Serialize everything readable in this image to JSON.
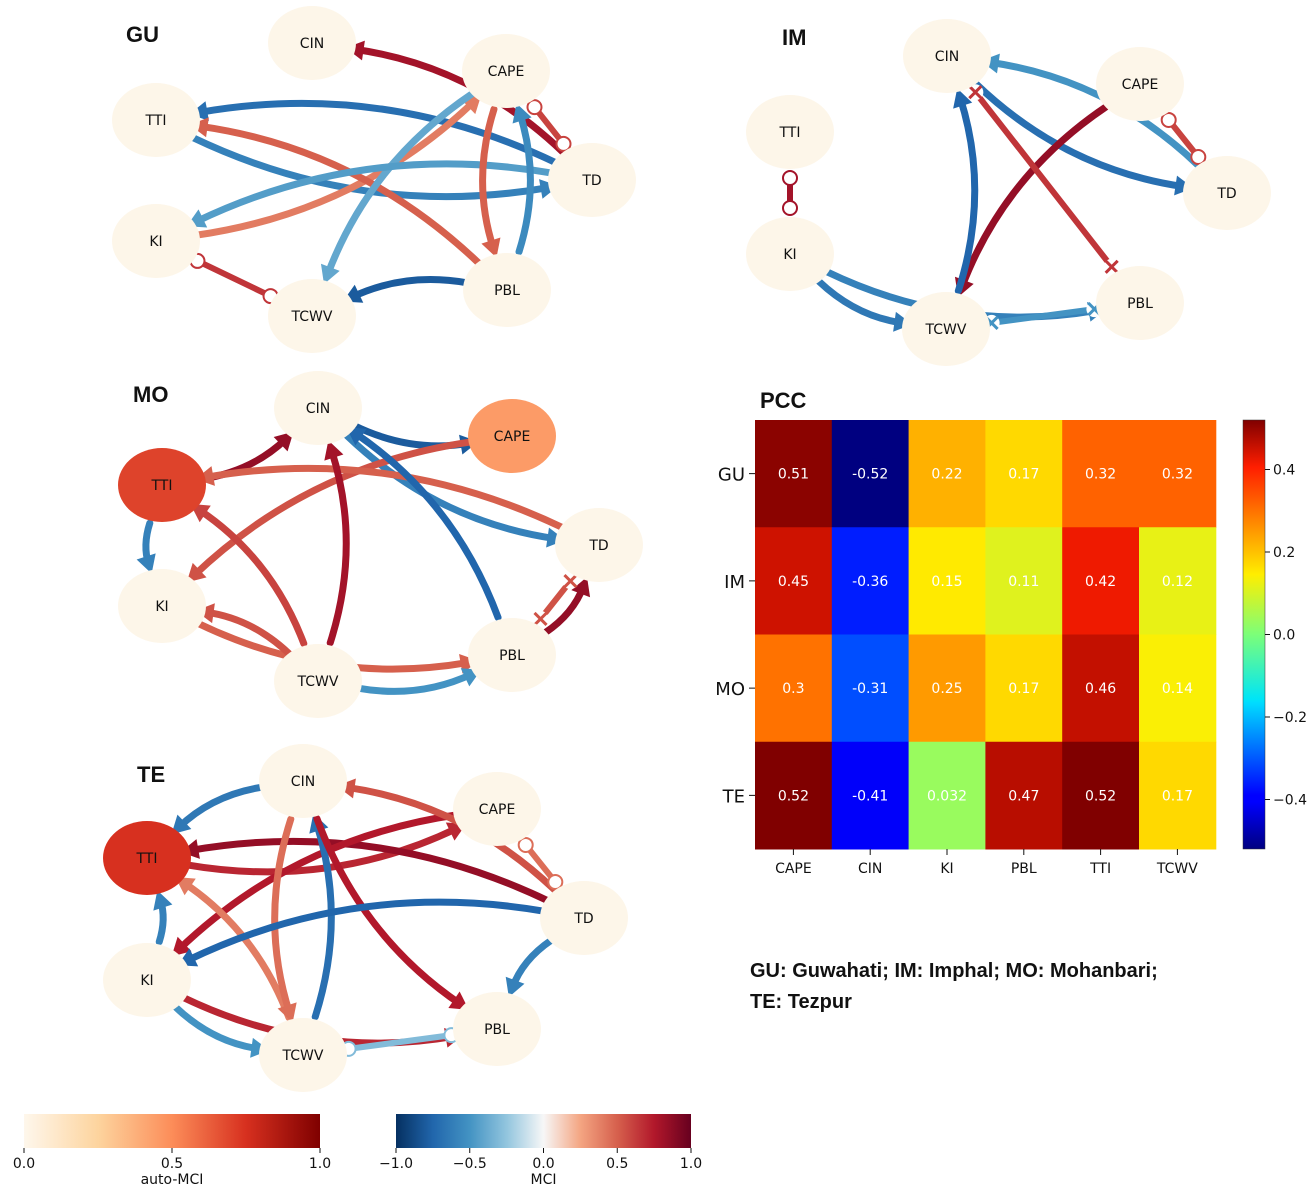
{
  "panels": [
    {
      "id": "GU",
      "title": "GU",
      "nodes": [
        {
          "name": "CIN",
          "label": "CIN",
          "auto_mci": 0.05
        },
        {
          "name": "CAPE",
          "label": "CAPE",
          "auto_mci": 0.05
        },
        {
          "name": "TTI",
          "label": "TTI",
          "auto_mci": 0.05
        },
        {
          "name": "TD",
          "label": "TD",
          "auto_mci": 0.05
        },
        {
          "name": "KI",
          "label": "KI",
          "auto_mci": 0.05
        },
        {
          "name": "PBL",
          "label": "PBL",
          "auto_mci": 0.05
        },
        {
          "name": "TCWV",
          "label": "TCWV",
          "auto_mci": 0.05
        }
      ],
      "links": [
        {
          "from": "TTI",
          "to": "TD",
          "mci": -0.6,
          "type": "arrow"
        },
        {
          "from": "TD",
          "to": "TTI",
          "mci": -0.7,
          "type": "arrow"
        },
        {
          "from": "KI",
          "to": "CAPE",
          "mci": 0.4,
          "type": "arrow"
        },
        {
          "from": "TD",
          "to": "CIN",
          "mci": 0.8,
          "type": "arrow"
        },
        {
          "from": "PBL",
          "to": "TTI",
          "mci": 0.5,
          "type": "arrow"
        },
        {
          "from": "CAPE",
          "to": "TCWV",
          "mci": -0.4,
          "type": "arrow"
        },
        {
          "from": "TD",
          "to": "KI",
          "mci": -0.45,
          "type": "arrow"
        },
        {
          "from": "PBL",
          "to": "TCWV",
          "mci": -0.8,
          "type": "arrow"
        },
        {
          "from": "CAPE",
          "to": "PBL",
          "mci": 0.5,
          "type": "arrow"
        },
        {
          "from": "PBL",
          "to": "CAPE",
          "mci": -0.55,
          "type": "arrow"
        },
        {
          "from": "CAPE",
          "to": "TD",
          "mci": 0.6,
          "type": "circle"
        },
        {
          "from": "KI",
          "to": "TCWV",
          "mci": 0.65,
          "type": "circle"
        }
      ]
    },
    {
      "id": "IM",
      "title": "IM",
      "nodes": [
        {
          "name": "CIN",
          "label": "CIN",
          "auto_mci": 0.05
        },
        {
          "name": "CAPE",
          "label": "CAPE",
          "auto_mci": 0.05
        },
        {
          "name": "TTI",
          "label": "TTI",
          "auto_mci": 0.05
        },
        {
          "name": "TD",
          "label": "TD",
          "auto_mci": 0.05
        },
        {
          "name": "KI",
          "label": "KI",
          "auto_mci": 0.05
        },
        {
          "name": "PBL",
          "label": "PBL",
          "auto_mci": 0.05
        },
        {
          "name": "TCWV",
          "label": "TCWV",
          "auto_mci": 0.05
        }
      ],
      "links": [
        {
          "from": "CIN",
          "to": "TD",
          "mci": -0.7,
          "type": "arrow"
        },
        {
          "from": "TD",
          "to": "CIN",
          "mci": -0.5,
          "type": "arrow"
        },
        {
          "from": "CAPE",
          "to": "TCWV",
          "mci": 0.85,
          "type": "arrow"
        },
        {
          "from": "TCWV",
          "to": "CIN",
          "mci": -0.75,
          "type": "arrow"
        },
        {
          "from": "KI",
          "to": "TCWV",
          "mci": -0.65,
          "type": "arrow"
        },
        {
          "from": "KI",
          "to": "PBL",
          "mci": -0.6,
          "type": "arrow"
        },
        {
          "from": "CIN",
          "to": "PBL",
          "mci": 0.65,
          "type": "cross"
        },
        {
          "from": "TCWV",
          "to": "PBL",
          "mci": -0.5,
          "type": "cross"
        },
        {
          "from": "TTI",
          "to": "KI",
          "mci": 0.8,
          "type": "circle"
        },
        {
          "from": "CAPE",
          "to": "TD",
          "mci": 0.6,
          "type": "circle"
        }
      ]
    },
    {
      "id": "MO",
      "title": "MO",
      "nodes": [
        {
          "name": "CIN",
          "label": "CIN",
          "auto_mci": 0.05
        },
        {
          "name": "CAPE",
          "label": "CAPE",
          "auto_mci": 0.45
        },
        {
          "name": "TTI",
          "label": "TTI",
          "auto_mci": 0.7
        },
        {
          "name": "TD",
          "label": "TD",
          "auto_mci": 0.05
        },
        {
          "name": "KI",
          "label": "KI",
          "auto_mci": 0.05
        },
        {
          "name": "PBL",
          "label": "PBL",
          "auto_mci": 0.05
        },
        {
          "name": "TCWV",
          "label": "TCWV",
          "auto_mci": 0.05
        }
      ],
      "links": [
        {
          "from": "TTI",
          "to": "CIN",
          "mci": 0.85,
          "type": "arrow"
        },
        {
          "from": "CIN",
          "to": "CAPE",
          "mci": -0.8,
          "type": "arrow"
        },
        {
          "from": "CIN",
          "to": "TD",
          "mci": -0.6,
          "type": "arrow"
        },
        {
          "from": "CAPE",
          "to": "KI",
          "mci": 0.55,
          "type": "arrow"
        },
        {
          "from": "TD",
          "to": "TTI",
          "mci": 0.5,
          "type": "arrow"
        },
        {
          "from": "TTI",
          "to": "KI",
          "mci": -0.6,
          "type": "arrow"
        },
        {
          "from": "KI",
          "to": "PBL",
          "mci": 0.5,
          "type": "arrow"
        },
        {
          "from": "TCWV",
          "to": "KI",
          "mci": 0.55,
          "type": "arrow"
        },
        {
          "from": "TCWV",
          "to": "TTI",
          "mci": 0.6,
          "type": "arrow"
        },
        {
          "from": "TCWV",
          "to": "CIN",
          "mci": 0.8,
          "type": "arrow"
        },
        {
          "from": "PBL",
          "to": "CIN",
          "mci": -0.75,
          "type": "arrow"
        },
        {
          "from": "TCWV",
          "to": "PBL",
          "mci": -0.5,
          "type": "arrow"
        },
        {
          "from": "PBL",
          "to": "TD",
          "mci": 0.85,
          "type": "arrow"
        },
        {
          "from": "PBL",
          "to": "TD",
          "mci": 0.55,
          "type": "cross"
        }
      ]
    },
    {
      "id": "TE",
      "title": "TE",
      "nodes": [
        {
          "name": "CIN",
          "label": "CIN",
          "auto_mci": 0.05
        },
        {
          "name": "CAPE",
          "label": "CAPE",
          "auto_mci": 0.05
        },
        {
          "name": "TTI",
          "label": "TTI",
          "auto_mci": 0.75
        },
        {
          "name": "TD",
          "label": "TD",
          "auto_mci": 0.05
        },
        {
          "name": "KI",
          "label": "KI",
          "auto_mci": 0.05
        },
        {
          "name": "PBL",
          "label": "PBL",
          "auto_mci": 0.05
        },
        {
          "name": "TCWV",
          "label": "TCWV",
          "auto_mci": 0.05
        }
      ],
      "links": [
        {
          "from": "TTI",
          "to": "CAPE",
          "mci": 0.7,
          "type": "arrow"
        },
        {
          "from": "CIN",
          "to": "TTI",
          "mci": -0.65,
          "type": "arrow"
        },
        {
          "from": "TD",
          "to": "TTI",
          "mci": 0.85,
          "type": "arrow"
        },
        {
          "from": "CAPE",
          "to": "KI",
          "mci": 0.75,
          "type": "arrow"
        },
        {
          "from": "KI",
          "to": "TTI",
          "mci": -0.6,
          "type": "arrow"
        },
        {
          "from": "TCWV",
          "to": "TTI",
          "mci": 0.4,
          "type": "arrow"
        },
        {
          "from": "TCWV",
          "to": "CIN",
          "mci": -0.7,
          "type": "arrow"
        },
        {
          "from": "CIN",
          "to": "TCWV",
          "mci": 0.45,
          "type": "arrow"
        },
        {
          "from": "CIN",
          "to": "PBL",
          "mci": 0.75,
          "type": "arrow"
        },
        {
          "from": "TD",
          "to": "CIN",
          "mci": 0.55,
          "type": "arrow"
        },
        {
          "from": "KI",
          "to": "PBL",
          "mci": 0.7,
          "type": "arrow"
        },
        {
          "from": "TD",
          "to": "KI",
          "mci": -0.75,
          "type": "arrow"
        },
        {
          "from": "TD",
          "to": "PBL",
          "mci": -0.6,
          "type": "arrow"
        },
        {
          "from": "KI",
          "to": "TCWV",
          "mci": -0.5,
          "type": "arrow"
        },
        {
          "from": "TD",
          "to": "CAPE",
          "mci": 0.45,
          "type": "circle"
        },
        {
          "from": "TCWV",
          "to": "PBL",
          "mci": -0.3,
          "type": "circle"
        }
      ]
    }
  ],
  "chart_data": {
    "type": "heatmap",
    "title": "PCC",
    "rows": [
      "GU",
      "IM",
      "MO",
      "TE"
    ],
    "columns": [
      "CAPE",
      "CIN",
      "KI",
      "PBL",
      "TTI",
      "TCWV"
    ],
    "values": [
      [
        0.51,
        -0.52,
        0.22,
        0.17,
        0.32,
        0.32
      ],
      [
        0.45,
        -0.36,
        0.15,
        0.11,
        0.42,
        0.12
      ],
      [
        0.3,
        -0.31,
        0.25,
        0.17,
        0.46,
        0.14
      ],
      [
        0.52,
        -0.41,
        0.032,
        0.47,
        0.52,
        0.17
      ]
    ],
    "value_labels": [
      [
        "0.51",
        "-0.52",
        "0.22",
        "0.17",
        "0.32",
        "0.32"
      ],
      [
        "0.45",
        "-0.36",
        "0.15",
        "0.11",
        "0.42",
        "0.12"
      ],
      [
        "0.3",
        "-0.31",
        "0.25",
        "0.17",
        "0.46",
        "0.14"
      ],
      [
        "0.52",
        "-0.41",
        "0.032",
        "0.47",
        "0.52",
        "0.17"
      ]
    ],
    "colormap": "jet",
    "vmin": -0.52,
    "vmax": 0.52,
    "colorbar_ticks": [
      0.4,
      0.2,
      0.0,
      -0.2,
      -0.4
    ],
    "colorbar_tick_labels": [
      "0.4",
      "0.2",
      "0.0",
      "−0.2",
      "−0.4"
    ]
  },
  "colorbars": {
    "auto_mci": {
      "label": "auto-MCI",
      "min": 0.0,
      "max": 1.0,
      "ticks": [
        0.0,
        0.5,
        1.0
      ],
      "tick_labels": [
        "0.0",
        "0.5",
        "1.0"
      ],
      "colormap": "OrRd"
    },
    "mci": {
      "label": "MCI",
      "min": -1.0,
      "max": 1.0,
      "ticks": [
        -1.0,
        -0.5,
        0.0,
        0.5,
        1.0
      ],
      "tick_labels": [
        "−1.0",
        "−0.5",
        "0.0",
        "0.5",
        "1.0"
      ],
      "colormap": "RdBu_r"
    }
  },
  "legend": {
    "line1": "GU: Guwahati; IM: Imphal; MO: Mohanbari;",
    "line2": "TE: Tezpur"
  }
}
